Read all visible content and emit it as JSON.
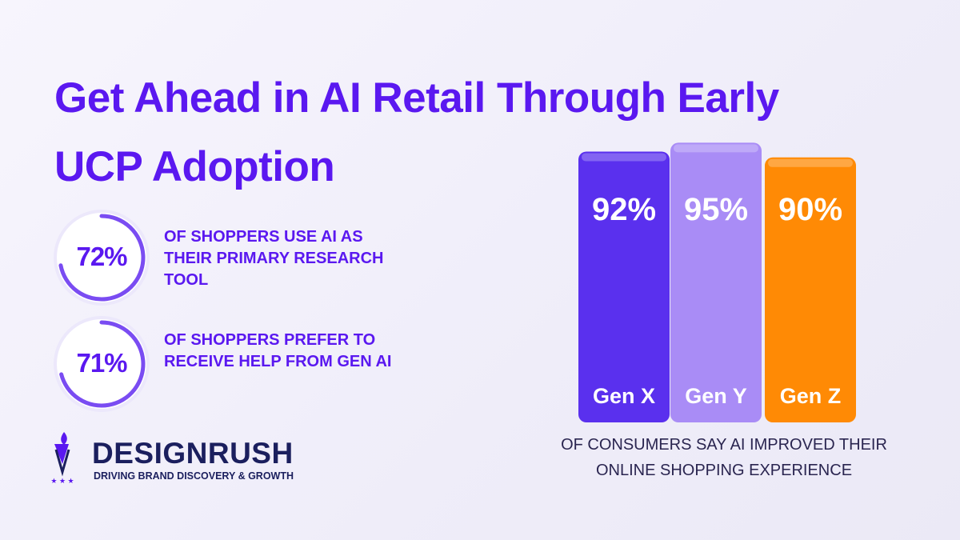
{
  "chart_data": {
    "type": "bar",
    "title": "Get Ahead in AI Retail Through Early UCP Adoption",
    "categories": [
      "Gen X",
      "Gen Y",
      "Gen Z"
    ],
    "values": [
      92,
      95,
      90
    ],
    "value_labels": [
      "92%",
      "95%",
      "90%"
    ],
    "colors": [
      "#5a30ee",
      "#a98cf6",
      "#ff8a05"
    ],
    "caption": "OF CONSUMERS SAY AI IMPROVED THEIR ONLINE SHOPPING EXPERIENCE"
  },
  "stats": [
    {
      "value": 72,
      "label": "72%",
      "text": "OF SHOPPERS USE AI AS THEIR PRIMARY RESEARCH TOOL"
    },
    {
      "value": 71,
      "label": "71%",
      "text": "OF SHOPPERS PREFER TO RECEIVE HELP FROM GEN AI"
    }
  ],
  "brand": {
    "name": "DESIGNRUSH",
    "tagline": "DRIVING BRAND DISCOVERY & GROWTH"
  }
}
